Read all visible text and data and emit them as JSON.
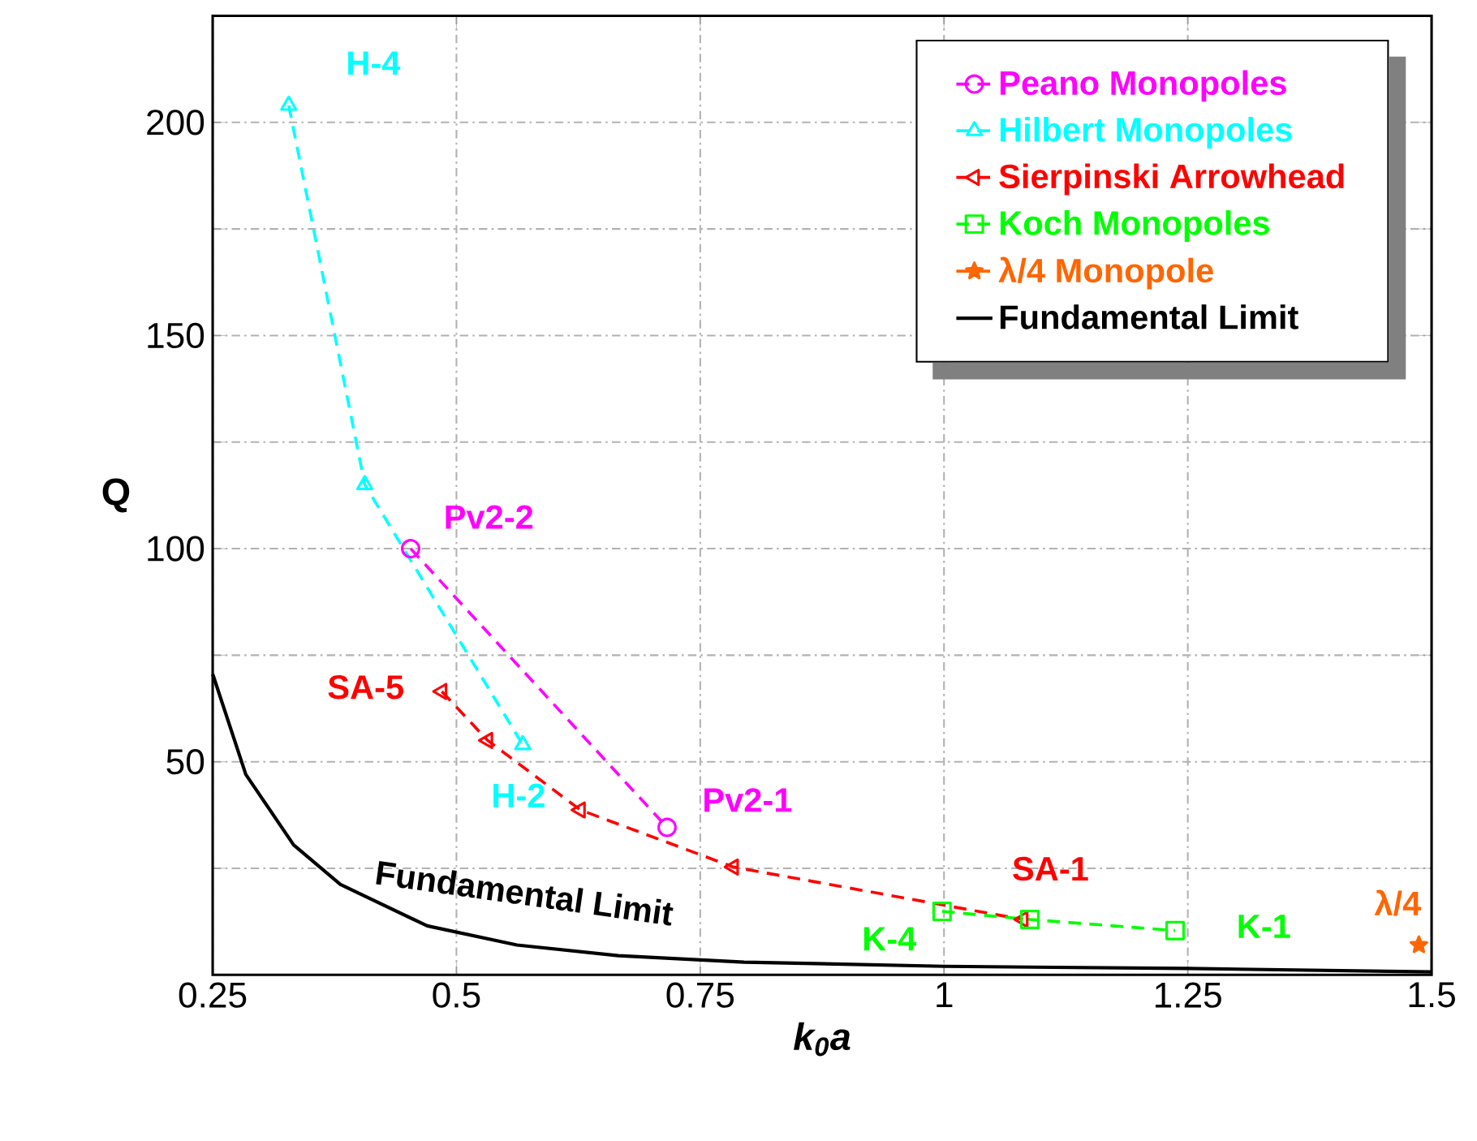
{
  "chart_data": {
    "type": "line",
    "xlabel": "k$_{0}$a",
    "ylabel": "Q",
    "xlim": [
      0.25,
      1.5
    ],
    "ylim": [
      0,
      225
    ],
    "xticks": [
      0.25,
      0.5,
      0.75,
      1,
      1.25,
      1.5
    ],
    "yticks": [
      {
        "value": 25,
        "label": null
      },
      50,
      {
        "value": 75,
        "label": null
      },
      100,
      {
        "value": 125,
        "label": null
      },
      150,
      {
        "value": 175,
        "label": null
      },
      200
    ],
    "grid": true,
    "legend": "top right",
    "series": [
      {
        "name": "Peano Monopoles",
        "color": "#ff00ff",
        "marker": "circle",
        "line_style": "dashed",
        "x": [
          0.453,
          0.716
        ],
        "values": [
          100,
          34.6
        ]
      },
      {
        "name": "Hilbert Monopoles",
        "color": "#00ffff",
        "marker": "triangle",
        "line_style": "dashed",
        "x": [
          0.328,
          0.406,
          0.568
        ],
        "values": [
          204,
          115,
          54
        ]
      },
      {
        "name": "Sierpinski Arrowhead",
        "color": "#ff0000",
        "marker": "triangle-left",
        "line_style": "dashed",
        "x": [
          0.485,
          0.532,
          0.627,
          0.784,
          1.081
        ],
        "values": [
          66.5,
          55,
          38.7,
          25.3,
          13
        ]
      },
      {
        "name": "Koch Monopoles",
        "color": "#00ff00",
        "marker": "square",
        "line_style": "dashed",
        "x": [
          0.998,
          1.088,
          1.237
        ],
        "values": [
          14.9,
          13,
          10.4
        ]
      },
      {
        "name": "λ/4 Monopole",
        "color": "#ff6600",
        "marker": "star",
        "line_style": "dashed",
        "x": [
          1.487
        ],
        "values": [
          7
        ]
      },
      {
        "name": "Fundamental Limit",
        "color": "#000000",
        "marker": "none",
        "line_style": "solid",
        "x": [
          0.25,
          0.284,
          0.333,
          0.381,
          0.47,
          0.562,
          0.666,
          0.795,
          1.0,
          1.25,
          1.5
        ],
        "values": [
          70.6,
          47,
          30.5,
          21.2,
          11.5,
          7,
          4.5,
          3,
          2,
          1.5,
          0.7
        ]
      }
    ],
    "annotations": [
      {
        "text": "H-4",
        "x": 0.328,
        "y": 204
      },
      {
        "text": "Pv2-2",
        "x": 0.453,
        "y": 100
      },
      {
        "text": "SA-5",
        "x": 0.485,
        "y": 66.5
      },
      {
        "text": "H-2",
        "x": 0.568,
        "y": 54
      },
      {
        "text": "Pv2-1",
        "x": 0.716,
        "y": 34.6
      },
      {
        "text": "SA-1",
        "x": 1.081,
        "y": 13
      },
      {
        "text": "K-4",
        "x": 0.998,
        "y": 14.9
      },
      {
        "text": "K-1",
        "x": 1.237,
        "y": 10.4
      },
      {
        "text": "λ/4",
        "x": 1.487,
        "y": 7
      },
      {
        "text": "Fundamental Limit",
        "x": 0.562,
        "y": 7
      }
    ]
  }
}
